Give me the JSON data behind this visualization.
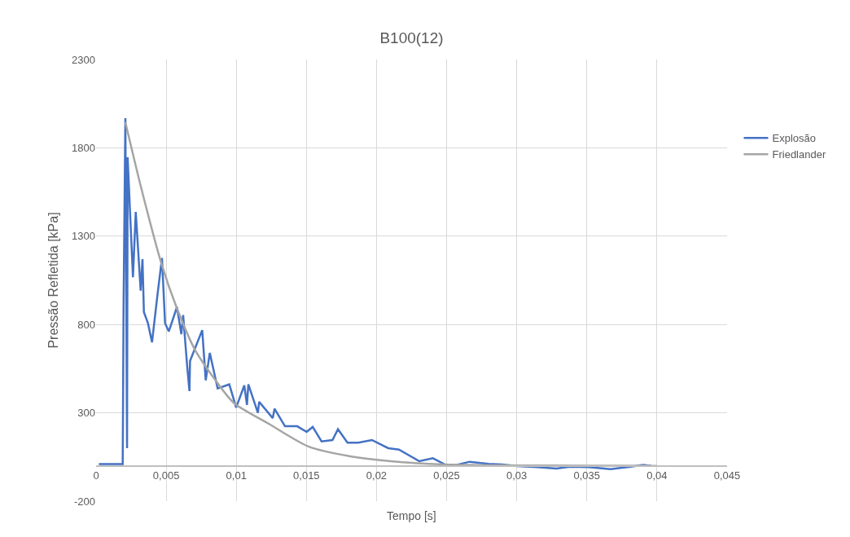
{
  "chart_data": {
    "type": "line",
    "title": "B100(12)",
    "xlabel": "Tempo [s]",
    "ylabel": "Pressão Refletida [kPa]",
    "xlim": [
      0,
      0.045
    ],
    "xticks": [
      0,
      {
        "value": 0.005,
        "label": "0,005"
      },
      {
        "value": 0.01,
        "label": "0,01"
      },
      {
        "value": 0.015,
        "label": "0,015"
      },
      {
        "value": 0.02,
        "label": "0,02"
      },
      {
        "value": 0.025,
        "label": "0,025"
      },
      {
        "value": 0.03,
        "label": "0,03"
      },
      {
        "value": 0.035,
        "label": "0,035"
      },
      {
        "value": 0.04,
        "label": "0,04"
      },
      {
        "value": 0.045,
        "label": "0,045"
      }
    ],
    "ylim": [
      -200,
      2300
    ],
    "yticks": [
      -200,
      300,
      800,
      1300,
      1800,
      2300
    ],
    "grid": true,
    "legend": "right",
    "marker": "none",
    "line_style": "solid",
    "series": [
      {
        "name": "Explosão",
        "color": "#4472c4",
        "x": [
          0.0002,
          0.0019,
          0.00196,
          0.00209,
          0.00221,
          0.00225,
          0.00263,
          0.00283,
          0.00318,
          0.00331,
          0.00341,
          0.0037,
          0.00399,
          0.00437,
          0.0047,
          0.00492,
          0.00519,
          0.00577,
          0.00608,
          0.00621,
          0.0065,
          0.00666,
          0.0067,
          0.00757,
          0.00782,
          0.00811,
          0.00867,
          0.0095,
          0.00999,
          0.01057,
          0.01076,
          0.01086,
          0.01154,
          0.01163,
          0.0126,
          0.01273,
          0.01347,
          0.01434,
          0.01502,
          0.01545,
          0.01608,
          0.01686,
          0.01725,
          0.01793,
          0.0187,
          0.01967,
          0.02083,
          0.0216,
          0.02305,
          0.02402,
          0.02489,
          0.02567,
          0.02664,
          0.02799,
          0.02896,
          0.03002,
          0.03147,
          0.03283,
          0.0338,
          0.03513,
          0.0367,
          0.03803,
          0.03902,
          0.0396
        ],
        "values": [
          10,
          10,
          900,
          1968,
          100,
          1746,
          1068,
          1437,
          991,
          1170,
          870,
          807,
          699,
          962,
          1176,
          807,
          761,
          899,
          745,
          853,
          561,
          423,
          593,
          768,
          484,
          639,
          438,
          461,
          330,
          455,
          345,
          461,
          300,
          362,
          270,
          323,
          224,
          224,
          192,
          220,
          138,
          146,
          207,
          131,
          131,
          146,
          100,
          92,
          26,
          43,
          7,
          4,
          23,
          11,
          8,
          -2,
          -8,
          -15,
          -5,
          -8,
          -19,
          -6,
          5,
          0
        ]
      },
      {
        "name": "Friedlander",
        "color": "#a5a5a5",
        "x": [
          0.00209,
          0.00321,
          0.00466,
          0.00573,
          0.00708,
          0.0094,
          0.00999,
          0.01231,
          0.01521,
          0.01812,
          0.02102,
          0.0249,
          0.03,
          0.035,
          0.04
        ],
        "values": [
          1945,
          1576,
          1145,
          899,
          653,
          392,
          345,
          238,
          107,
          54,
          26,
          7,
          2,
          1,
          0
        ]
      }
    ]
  }
}
